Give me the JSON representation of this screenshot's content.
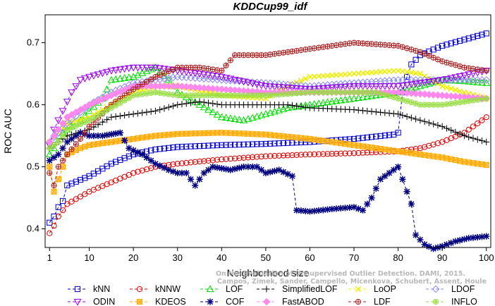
{
  "chart_data": {
    "type": "line",
    "title": "KDDCup99_idf",
    "xlabel": "Neighborhood size",
    "ylabel": "ROC AUC",
    "xlim": [
      0,
      101
    ],
    "ylim": [
      0.37,
      0.745
    ],
    "xticks": [
      1,
      10,
      20,
      30,
      40,
      50,
      60,
      70,
      80,
      90,
      100
    ],
    "yticks": [
      0.4,
      0.5,
      0.6,
      0.7
    ],
    "legend_position": "bottom",
    "watermark_lines": [
      "Campos, Zimek, Sander, Campello, Micenkova, Schubert, Assent, Houle",
      "On the Evaluation of Unsupervised Outlier Detection. DAMI, 2015."
    ],
    "series": [
      {
        "name": "kNN",
        "color": "#0000cc",
        "marker": "square",
        "points": [
          [
            1,
            0.41
          ],
          [
            2,
            0.42
          ],
          [
            3,
            0.435
          ],
          [
            4,
            0.445
          ],
          [
            5,
            0.47
          ],
          [
            10,
            0.485
          ],
          [
            15,
            0.505
          ],
          [
            20,
            0.52
          ],
          [
            25,
            0.528
          ],
          [
            30,
            0.532
          ],
          [
            40,
            0.535
          ],
          [
            50,
            0.537
          ],
          [
            60,
            0.54
          ],
          [
            70,
            0.545
          ],
          [
            79,
            0.552
          ],
          [
            80,
            0.555
          ],
          [
            81,
            0.62
          ],
          [
            82,
            0.645
          ],
          [
            83,
            0.665
          ],
          [
            85,
            0.68
          ],
          [
            90,
            0.695
          ],
          [
            95,
            0.705
          ],
          [
            100,
            0.715
          ]
        ]
      },
      {
        "name": "kNNW",
        "color": "#dd0000",
        "marker": "circle",
        "points": [
          [
            1,
            0.393
          ],
          [
            2,
            0.405
          ],
          [
            3,
            0.42
          ],
          [
            5,
            0.44
          ],
          [
            10,
            0.46
          ],
          [
            15,
            0.475
          ],
          [
            20,
            0.49
          ],
          [
            25,
            0.5
          ],
          [
            30,
            0.505
          ],
          [
            40,
            0.512
          ],
          [
            50,
            0.517
          ],
          [
            60,
            0.52
          ],
          [
            70,
            0.522
          ],
          [
            80,
            0.525
          ],
          [
            85,
            0.53
          ],
          [
            90,
            0.54
          ],
          [
            95,
            0.555
          ],
          [
            100,
            0.58
          ]
        ]
      },
      {
        "name": "LOF",
        "color": "#00dd00",
        "marker": "triangle-up",
        "points": [
          [
            1,
            0.52
          ],
          [
            2,
            0.53
          ],
          [
            3,
            0.55
          ],
          [
            5,
            0.56
          ],
          [
            8,
            0.575
          ],
          [
            10,
            0.59
          ],
          [
            13,
            0.61
          ],
          [
            15,
            0.64
          ],
          [
            20,
            0.645
          ],
          [
            25,
            0.66
          ],
          [
            28,
            0.64
          ],
          [
            30,
            0.62
          ],
          [
            35,
            0.6
          ],
          [
            40,
            0.58
          ],
          [
            45,
            0.575
          ],
          [
            50,
            0.585
          ],
          [
            55,
            0.595
          ],
          [
            60,
            0.6
          ],
          [
            65,
            0.605
          ],
          [
            70,
            0.61
          ],
          [
            75,
            0.615
          ],
          [
            80,
            0.62
          ],
          [
            85,
            0.63
          ],
          [
            90,
            0.64
          ],
          [
            95,
            0.638
          ],
          [
            100,
            0.635
          ]
        ]
      },
      {
        "name": "SimplifiedLOF",
        "color": "#000000",
        "marker": "plus",
        "points": [
          [
            1,
            0.53
          ],
          [
            3,
            0.54
          ],
          [
            5,
            0.55
          ],
          [
            10,
            0.56
          ],
          [
            15,
            0.58
          ],
          [
            20,
            0.585
          ],
          [
            25,
            0.59
          ],
          [
            30,
            0.6
          ],
          [
            35,
            0.605
          ],
          [
            40,
            0.6
          ],
          [
            45,
            0.6
          ],
          [
            50,
            0.6
          ],
          [
            55,
            0.6
          ],
          [
            60,
            0.595
          ],
          [
            70,
            0.592
          ],
          [
            80,
            0.585
          ],
          [
            85,
            0.575
          ],
          [
            90,
            0.565
          ],
          [
            95,
            0.55
          ],
          [
            100,
            0.54
          ]
        ]
      },
      {
        "name": "LoOP",
        "color": "#eeee00",
        "marker": "x",
        "points": [
          [
            1,
            0.54
          ],
          [
            5,
            0.57
          ],
          [
            10,
            0.58
          ],
          [
            15,
            0.6
          ],
          [
            20,
            0.62
          ],
          [
            25,
            0.63
          ],
          [
            30,
            0.63
          ],
          [
            40,
            0.615
          ],
          [
            50,
            0.61
          ],
          [
            55,
            0.63
          ],
          [
            60,
            0.645
          ],
          [
            70,
            0.65
          ],
          [
            80,
            0.655
          ],
          [
            85,
            0.65
          ],
          [
            90,
            0.63
          ],
          [
            95,
            0.62
          ],
          [
            100,
            0.61
          ]
        ]
      },
      {
        "name": "LDOF",
        "color": "#8888ee",
        "marker": "diamond",
        "points": [
          [
            1,
            0.54
          ],
          [
            5,
            0.57
          ],
          [
            10,
            0.6
          ],
          [
            15,
            0.62
          ],
          [
            20,
            0.635
          ],
          [
            30,
            0.645
          ],
          [
            40,
            0.64
          ],
          [
            50,
            0.635
          ],
          [
            60,
            0.63
          ],
          [
            70,
            0.635
          ],
          [
            80,
            0.64
          ],
          [
            90,
            0.64
          ],
          [
            100,
            0.64
          ]
        ]
      },
      {
        "name": "ODIN",
        "color": "#9900ee",
        "marker": "triangle-down",
        "points": [
          [
            1,
            0.535
          ],
          [
            2,
            0.56
          ],
          [
            4,
            0.59
          ],
          [
            6,
            0.62
          ],
          [
            8,
            0.64
          ],
          [
            10,
            0.645
          ],
          [
            15,
            0.655
          ],
          [
            20,
            0.66
          ],
          [
            25,
            0.66
          ],
          [
            30,
            0.655
          ],
          [
            40,
            0.645
          ],
          [
            50,
            0.63
          ],
          [
            60,
            0.625
          ],
          [
            70,
            0.63
          ],
          [
            80,
            0.63
          ],
          [
            90,
            0.64
          ],
          [
            100,
            0.655
          ]
        ]
      },
      {
        "name": "KDEOS",
        "color": "#ffaa00",
        "marker": "box-x",
        "points": [
          [
            1,
            0.5
          ],
          [
            2,
            0.46
          ],
          [
            3,
            0.48
          ],
          [
            4,
            0.5
          ],
          [
            5,
            0.52
          ],
          [
            8,
            0.53
          ],
          [
            10,
            0.535
          ],
          [
            15,
            0.54
          ],
          [
            20,
            0.545
          ],
          [
            25,
            0.55
          ],
          [
            30,
            0.553
          ],
          [
            40,
            0.555
          ],
          [
            50,
            0.552
          ],
          [
            60,
            0.545
          ],
          [
            70,
            0.535
          ],
          [
            80,
            0.525
          ],
          [
            85,
            0.52
          ],
          [
            90,
            0.515
          ],
          [
            95,
            0.508
          ],
          [
            100,
            0.503
          ]
        ]
      },
      {
        "name": "COF",
        "color": "#000080",
        "marker": "asterisk",
        "points": [
          [
            1,
            0.51
          ],
          [
            3,
            0.52
          ],
          [
            5,
            0.54
          ],
          [
            8,
            0.555
          ],
          [
            10,
            0.55
          ],
          [
            13,
            0.55
          ],
          [
            17,
            0.555
          ],
          [
            19,
            0.53
          ],
          [
            22,
            0.52
          ],
          [
            25,
            0.505
          ],
          [
            28,
            0.495
          ],
          [
            30,
            0.49
          ],
          [
            32,
            0.49
          ],
          [
            34,
            0.47
          ],
          [
            36,
            0.49
          ],
          [
            38,
            0.5
          ],
          [
            42,
            0.495
          ],
          [
            45,
            0.5
          ],
          [
            48,
            0.5
          ],
          [
            50,
            0.49
          ],
          [
            53,
            0.495
          ],
          [
            56,
            0.485
          ],
          [
            57,
            0.43
          ],
          [
            60,
            0.428
          ],
          [
            65,
            0.432
          ],
          [
            70,
            0.435
          ],
          [
            72,
            0.43
          ],
          [
            74,
            0.45
          ],
          [
            76,
            0.48
          ],
          [
            78,
            0.49
          ],
          [
            80,
            0.5
          ],
          [
            81,
            0.48
          ],
          [
            83,
            0.44
          ],
          [
            84,
            0.39
          ],
          [
            86,
            0.375
          ],
          [
            88,
            0.368
          ],
          [
            90,
            0.372
          ],
          [
            93,
            0.38
          ],
          [
            96,
            0.385
          ],
          [
            100,
            0.388
          ]
        ]
      },
      {
        "name": "FastABOD",
        "color": "#ff88ee",
        "marker": "diamond-filled",
        "points": [
          [
            1,
            0.54
          ],
          [
            5,
            0.58
          ],
          [
            10,
            0.6
          ],
          [
            15,
            0.615
          ],
          [
            20,
            0.63
          ],
          [
            30,
            0.63
          ],
          [
            40,
            0.625
          ],
          [
            50,
            0.62
          ],
          [
            60,
            0.62
          ],
          [
            70,
            0.62
          ],
          [
            80,
            0.62
          ],
          [
            90,
            0.615
          ],
          [
            100,
            0.61
          ]
        ]
      },
      {
        "name": "LDF",
        "color": "#aa2222",
        "marker": "circle-plus",
        "points": [
          [
            1,
            0.49
          ],
          [
            2,
            0.47
          ],
          [
            3,
            0.5
          ],
          [
            5,
            0.52
          ],
          [
            8,
            0.545
          ],
          [
            10,
            0.565
          ],
          [
            15,
            0.6
          ],
          [
            20,
            0.625
          ],
          [
            25,
            0.645
          ],
          [
            30,
            0.66
          ],
          [
            35,
            0.66
          ],
          [
            40,
            0.655
          ],
          [
            43,
            0.68
          ],
          [
            50,
            0.68
          ],
          [
            60,
            0.69
          ],
          [
            70,
            0.7
          ],
          [
            80,
            0.695
          ],
          [
            85,
            0.685
          ],
          [
            90,
            0.67
          ],
          [
            95,
            0.66
          ],
          [
            100,
            0.655
          ]
        ]
      },
      {
        "name": "INFLO",
        "color": "#99dd44",
        "marker": "circle-star",
        "points": [
          [
            1,
            0.53
          ],
          [
            3,
            0.54
          ],
          [
            5,
            0.56
          ],
          [
            10,
            0.575
          ],
          [
            15,
            0.595
          ],
          [
            20,
            0.615
          ],
          [
            25,
            0.62
          ],
          [
            30,
            0.615
          ],
          [
            40,
            0.615
          ],
          [
            50,
            0.615
          ],
          [
            60,
            0.62
          ],
          [
            70,
            0.62
          ],
          [
            75,
            0.62
          ],
          [
            80,
            0.61
          ],
          [
            85,
            0.6
          ],
          [
            90,
            0.6
          ],
          [
            95,
            0.605
          ],
          [
            100,
            0.61
          ]
        ]
      }
    ]
  }
}
